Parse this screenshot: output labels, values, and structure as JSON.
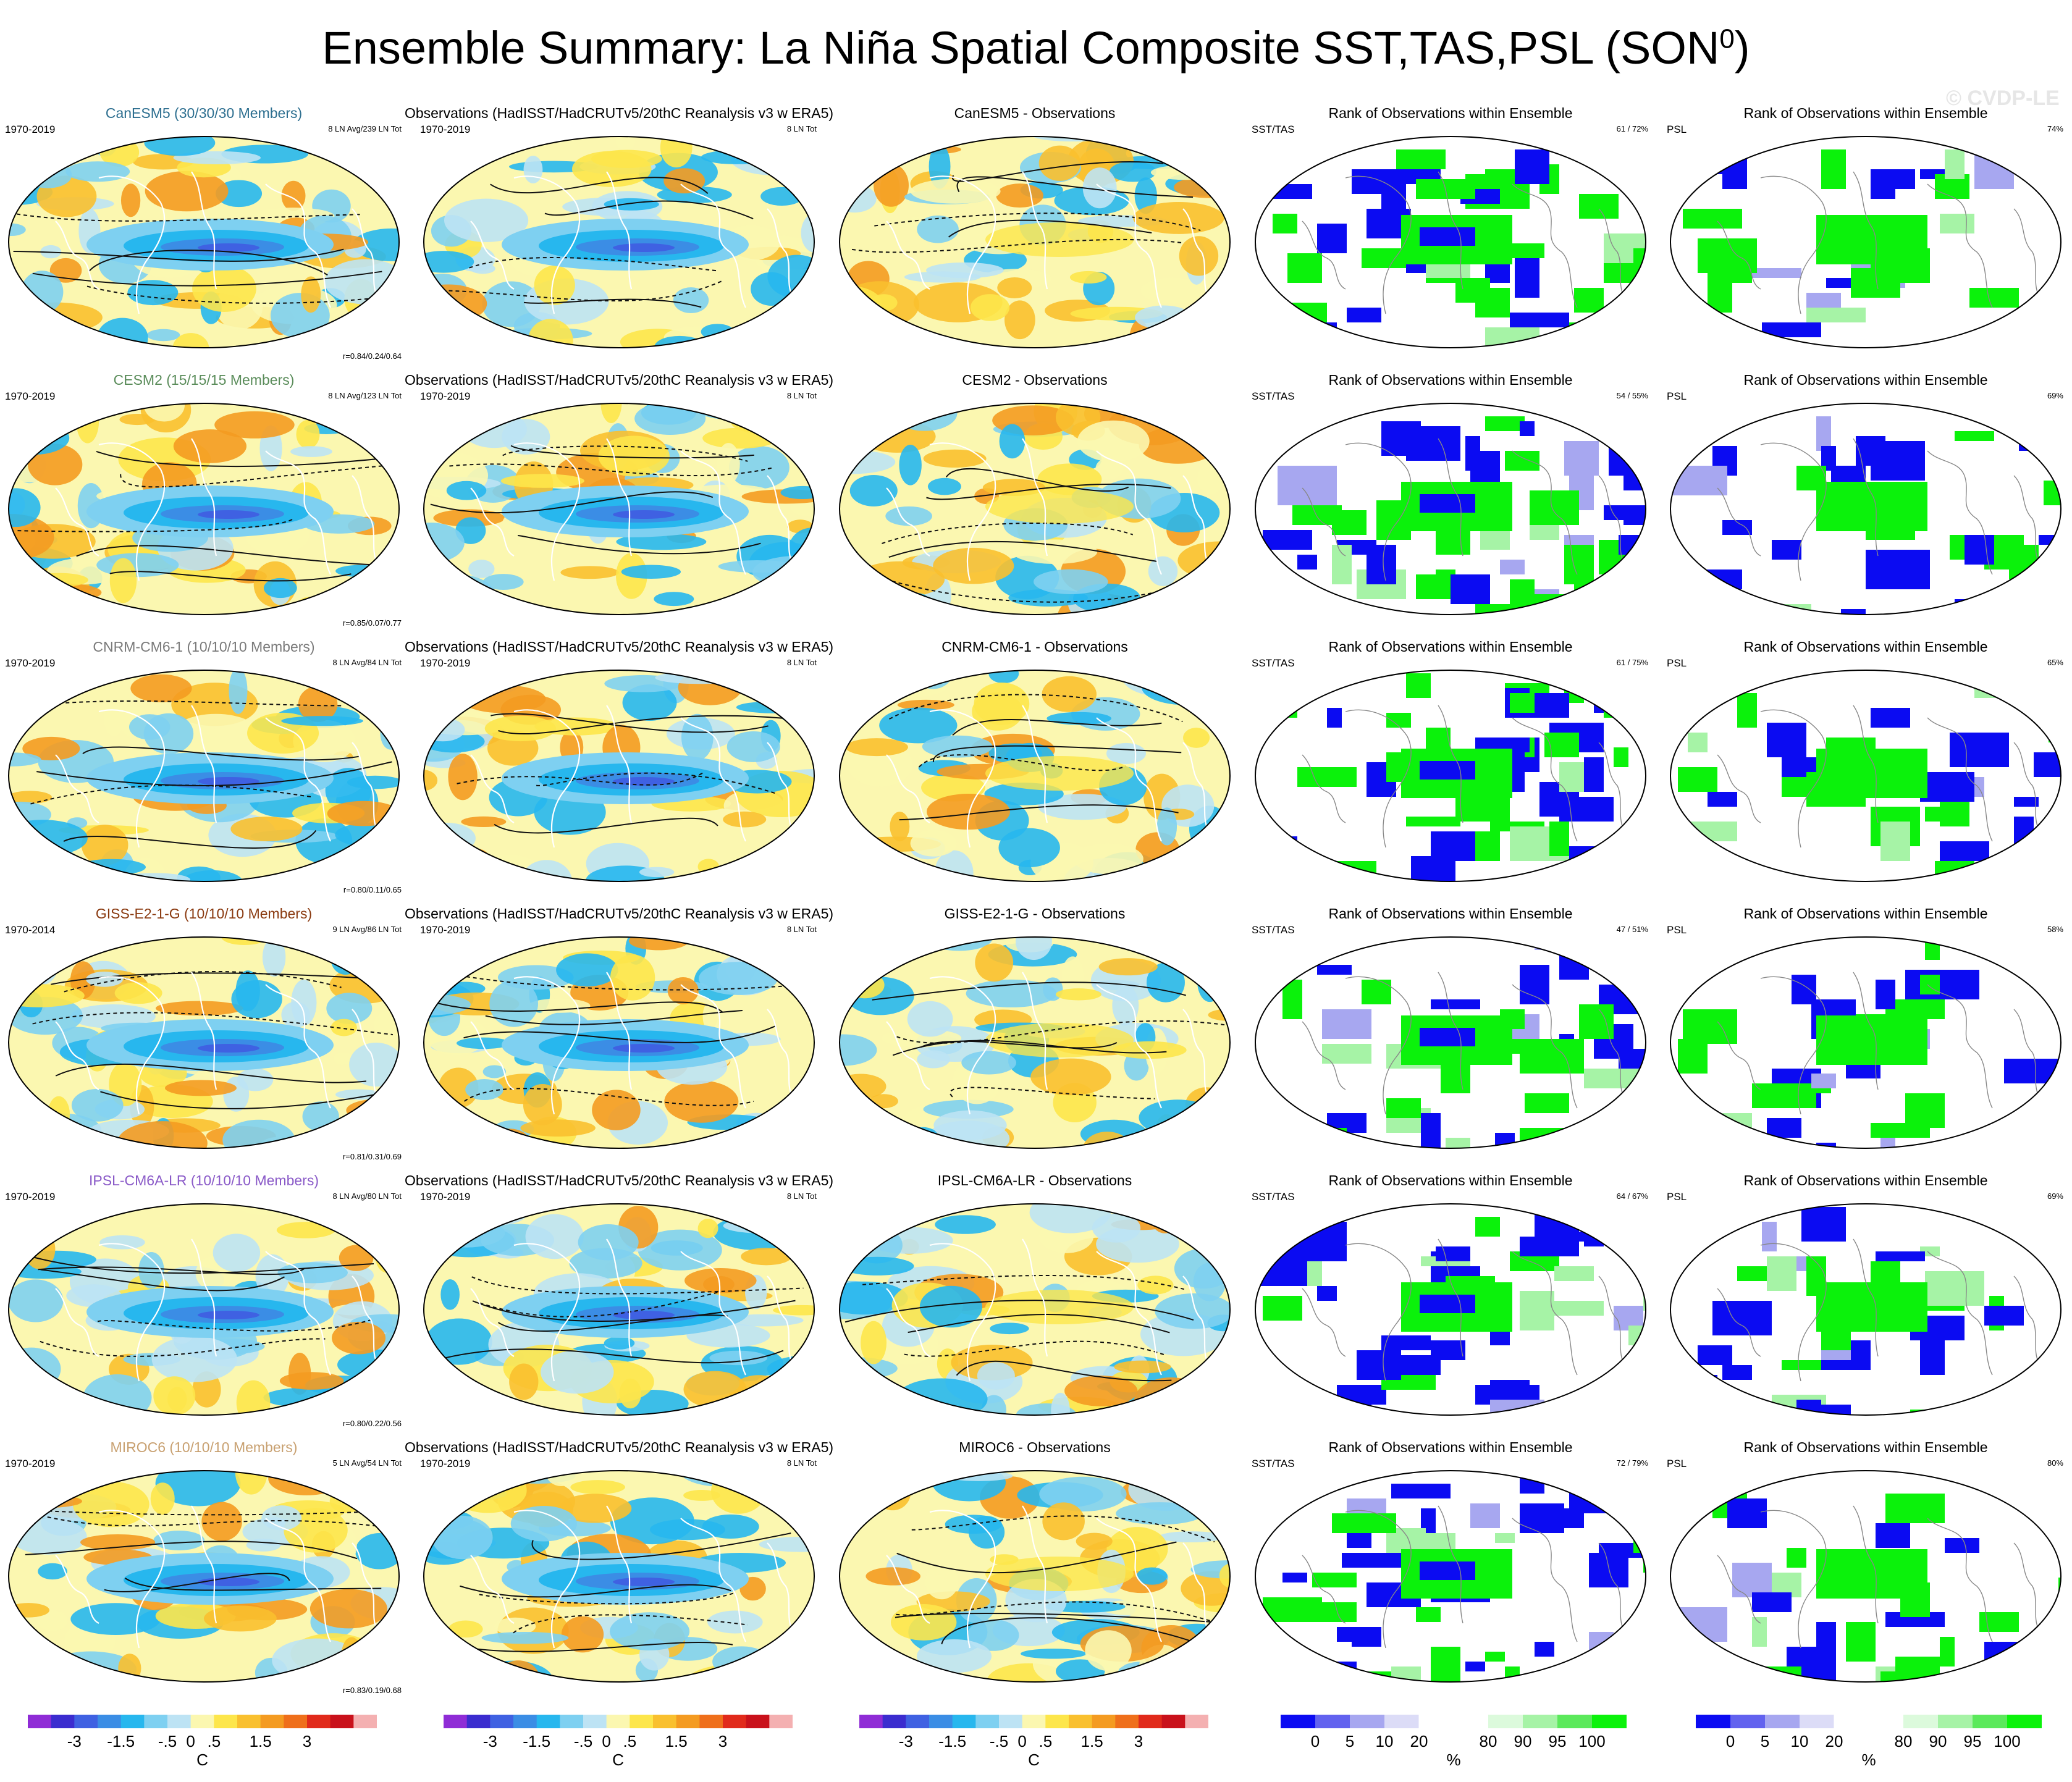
{
  "title": "Ensemble Summary: La Niña Spatial Composite SST,TAS,PSL (SON",
  "title_sup": "0",
  "title_close": ")",
  "watermark": "© CVDP-LE",
  "colors": {
    "temp_palette": [
      "#8f2cd6",
      "#3b2ccf",
      "#3f61e2",
      "#3b8de5",
      "#27b7ee",
      "#7ed0f1",
      "#bde3f4",
      "#fbf7b0",
      "#fde64b",
      "#f9c02f",
      "#f49b21",
      "#ef6f1b",
      "#e12a1b",
      "#c9111b",
      "#f4b0b1"
    ],
    "rank_palette": [
      "#0b0bf2",
      "#6262ef",
      "#a7a7f0",
      "#dcdcf7",
      "#ffffff",
      "#ffffff",
      "#dcfadc",
      "#a6f3a6",
      "#5be95b",
      "#0bf20b"
    ],
    "model_label_colors": [
      "#2c6e8f",
      "#5a8c5a",
      "#7a7a7a",
      "#8a3a10",
      "#8a5ac8",
      "#c8a070"
    ]
  },
  "rows": [
    {
      "model": "CanESM5 (30/30/30 Members)",
      "model_period": "1970-2019",
      "model_count": "8 LN Avg/239 LN Tot",
      "model_stat": "r=0.84/0.24/0.64",
      "obs_title": "Observations (HadISST/HadCRUTv5/20thC Reanalysis v3 w ERA5)",
      "obs_period": "1970-2019",
      "obs_count": "8 LN Tot",
      "diff_title": "CanESM5 - Observations",
      "rank1_title": "Rank of Observations within Ensemble",
      "rank1_left": "SST/TAS",
      "rank1_right": "61 / 72%",
      "rank2_title": "Rank of Observations within Ensemble",
      "rank2_left": "PSL",
      "rank2_right": "74%"
    },
    {
      "model": "CESM2 (15/15/15 Members)",
      "model_period": "1970-2019",
      "model_count": "8 LN Avg/123 LN Tot",
      "model_stat": "r=0.85/0.07/0.77",
      "obs_title": "Observations (HadISST/HadCRUTv5/20thC Reanalysis v3 w ERA5)",
      "obs_period": "1970-2019",
      "obs_count": "8 LN Tot",
      "diff_title": "CESM2 - Observations",
      "rank1_title": "Rank of Observations within Ensemble",
      "rank1_left": "SST/TAS",
      "rank1_right": "54 / 55%",
      "rank2_title": "Rank of Observations within Ensemble",
      "rank2_left": "PSL",
      "rank2_right": "69%"
    },
    {
      "model": "CNRM-CM6-1 (10/10/10 Members)",
      "model_period": "1970-2019",
      "model_count": "8 LN Avg/84 LN Tot",
      "model_stat": "r=0.80/0.11/0.65",
      "obs_title": "Observations (HadISST/HadCRUTv5/20thC Reanalysis v3 w ERA5)",
      "obs_period": "1970-2019",
      "obs_count": "8 LN Tot",
      "diff_title": "CNRM-CM6-1 - Observations",
      "rank1_title": "Rank of Observations within Ensemble",
      "rank1_left": "SST/TAS",
      "rank1_right": "61 / 75%",
      "rank2_title": "Rank of Observations within Ensemble",
      "rank2_left": "PSL",
      "rank2_right": "65%"
    },
    {
      "model": "GISS-E2-1-G (10/10/10 Members)",
      "model_period": "1970-2014",
      "model_count": "9 LN Avg/86 LN Tot",
      "model_stat": "r=0.81/0.31/0.69",
      "obs_title": "Observations (HadISST/HadCRUTv5/20thC Reanalysis v3 w ERA5)",
      "obs_period": "1970-2019",
      "obs_count": "8 LN Tot",
      "diff_title": "GISS-E2-1-G - Observations",
      "rank1_title": "Rank of Observations within Ensemble",
      "rank1_left": "SST/TAS",
      "rank1_right": "47 / 51%",
      "rank2_title": "Rank of Observations within Ensemble",
      "rank2_left": "PSL",
      "rank2_right": "58%"
    },
    {
      "model": "IPSL-CM6A-LR (10/10/10 Members)",
      "model_period": "1970-2019",
      "model_count": "8 LN Avg/80 LN Tot",
      "model_stat": "r=0.80/0.22/0.56",
      "obs_title": "Observations (HadISST/HadCRUTv5/20thC Reanalysis v3 w ERA5)",
      "obs_period": "1970-2019",
      "obs_count": "8 LN Tot",
      "diff_title": "IPSL-CM6A-LR - Observations",
      "rank1_title": "Rank of Observations within Ensemble",
      "rank1_left": "SST/TAS",
      "rank1_right": "64 / 67%",
      "rank2_title": "Rank of Observations within Ensemble",
      "rank2_left": "PSL",
      "rank2_right": "69%"
    },
    {
      "model": "MIROC6 (10/10/10 Members)",
      "model_period": "1970-2019",
      "model_count": "5 LN Avg/54 LN Tot",
      "model_stat": "r=0.83/0.19/0.68",
      "obs_title": "Observations (HadISST/HadCRUTv5/20thC Reanalysis v3 w ERA5)",
      "obs_period": "1970-2019",
      "obs_count": "8 LN Tot",
      "diff_title": "MIROC6 - Observations",
      "rank1_title": "Rank of Observations within Ensemble",
      "rank1_left": "SST/TAS",
      "rank1_right": "72 / 79%",
      "rank2_title": "Rank of Observations within Ensemble",
      "rank2_left": "PSL",
      "rank2_right": "80%"
    }
  ],
  "colorbars": {
    "temp_ticks": [
      "-3",
      "-1.5",
      "-.5",
      "0",
      ".5",
      "1.5",
      "3"
    ],
    "temp_unit": "C",
    "rank_ticks": [
      "0",
      "5",
      "10",
      "20",
      "80",
      "90",
      "95",
      "100"
    ],
    "rank_unit": "%"
  }
}
